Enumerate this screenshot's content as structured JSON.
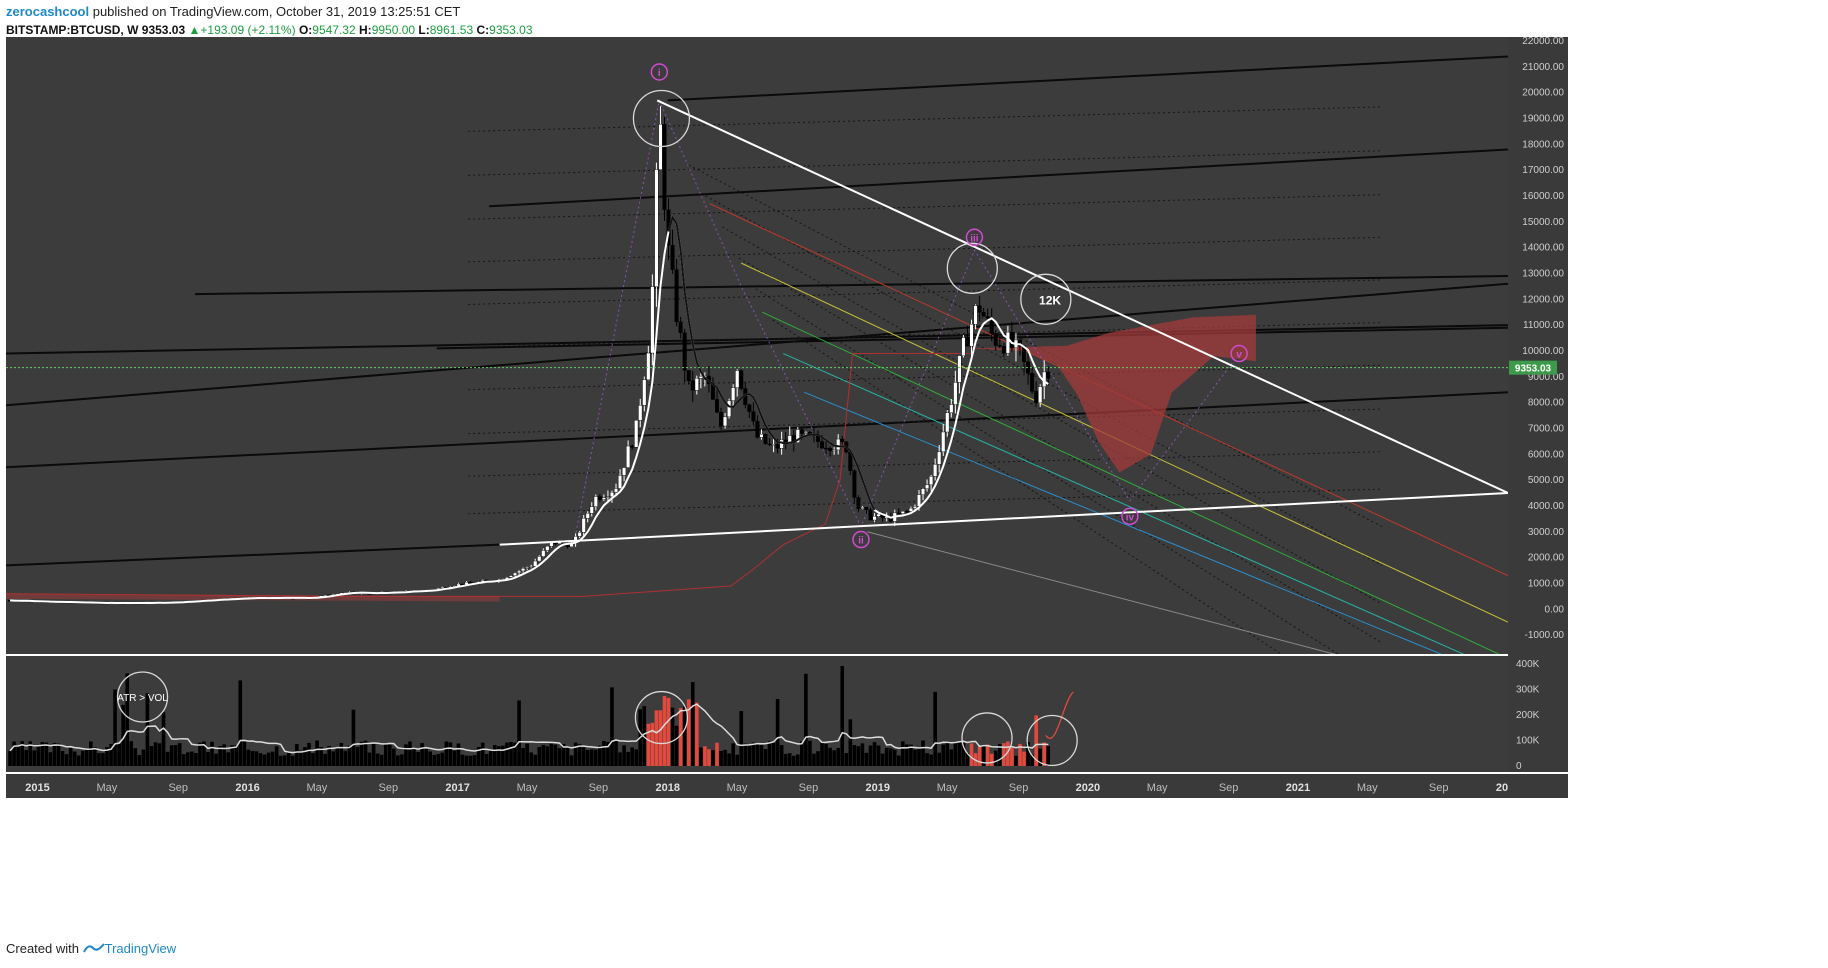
{
  "header": {
    "author": "zerocashcool",
    "published_text": "published on TradingView.com, October 31, 2019 13:25:51 CET",
    "symbol": "BITSTAMP:BTCUSD, W",
    "price": "9353.03",
    "change": "+193.09 (+2.11%)",
    "o_label": "O:",
    "o_value": "9547.32",
    "h_label": "H:",
    "h_value": "9950.00",
    "l_label": "L:",
    "l_value": "8961.53",
    "c_label": "C:",
    "c_value": "9353.03"
  },
  "footer": {
    "created_with": "Created with",
    "brand": "TradingView"
  },
  "colors": {
    "panel_bg": "#3c3c3c",
    "up_candle": "#ffffff",
    "down_candle": "#000000",
    "price_tag": "#3d9a4b",
    "volume_highlight": "#e04a3f",
    "cloud": "#a33a3a",
    "wave_label": "#d24bd2"
  },
  "chart_data": {
    "type": "candlestick",
    "ylim": [
      -1500,
      22000
    ],
    "y_ticks": [
      "22000.00",
      "21000.00",
      "20000.00",
      "19000.00",
      "18000.00",
      "17000.00",
      "16000.00",
      "15000.00",
      "14000.00",
      "13000.00",
      "12000.00",
      "11000.00",
      "10000.00",
      "9000.00",
      "8000.00",
      "7000.00",
      "6000.00",
      "5000.00",
      "4000.00",
      "3000.00",
      "2000.00",
      "1000.00",
      "0.00",
      "-1000.00"
    ],
    "y_values": [
      22000,
      21000,
      20000,
      19000,
      18000,
      17000,
      16000,
      15000,
      14000,
      13000,
      12000,
      11000,
      10000,
      9000,
      8000,
      7000,
      6000,
      5000,
      4000,
      3000,
      2000,
      1000,
      0,
      -1000
    ],
    "x_ticks": [
      {
        "label": "2015",
        "t": 2015.0,
        "year": true
      },
      {
        "label": "May",
        "t": 2015.33
      },
      {
        "label": "Sep",
        "t": 2015.67
      },
      {
        "label": "2016",
        "t": 2016.0,
        "year": true
      },
      {
        "label": "May",
        "t": 2016.33
      },
      {
        "label": "Sep",
        "t": 2016.67
      },
      {
        "label": "2017",
        "t": 2017.0,
        "year": true
      },
      {
        "label": "May",
        "t": 2017.33
      },
      {
        "label": "Sep",
        "t": 2017.67
      },
      {
        "label": "2018",
        "t": 2018.0,
        "year": true
      },
      {
        "label": "May",
        "t": 2018.33
      },
      {
        "label": "Sep",
        "t": 2018.67
      },
      {
        "label": "2019",
        "t": 2019.0,
        "year": true
      },
      {
        "label": "May",
        "t": 2019.33
      },
      {
        "label": "Sep",
        "t": 2019.67
      },
      {
        "label": "2020",
        "t": 2020.0,
        "year": true
      },
      {
        "label": "May",
        "t": 2020.33
      },
      {
        "label": "Sep",
        "t": 2020.67
      },
      {
        "label": "2021",
        "t": 2021.0,
        "year": true
      },
      {
        "label": "May",
        "t": 2021.33
      },
      {
        "label": "Sep",
        "t": 2021.67
      },
      {
        "label": "20",
        "t": 2022.0,
        "year": true
      }
    ],
    "xlim": [
      2014.85,
      2022.0
    ],
    "price_points": [
      [
        2014.85,
        350
      ],
      [
        2015.0,
        300
      ],
      [
        2015.3,
        240
      ],
      [
        2015.6,
        250
      ],
      [
        2015.85,
        380
      ],
      [
        2016.0,
        430
      ],
      [
        2016.3,
        440
      ],
      [
        2016.45,
        650
      ],
      [
        2016.6,
        620
      ],
      [
        2016.85,
        720
      ],
      [
        2017.0,
        960
      ],
      [
        2017.2,
        1150
      ],
      [
        2017.35,
        1700
      ],
      [
        2017.45,
        2600
      ],
      [
        2017.55,
        2500
      ],
      [
        2017.65,
        4300
      ],
      [
        2017.75,
        4700
      ],
      [
        2017.85,
        7000
      ],
      [
        2017.92,
        11000
      ],
      [
        2017.96,
        19200
      ],
      [
        2018.0,
        14000
      ],
      [
        2018.05,
        11000
      ],
      [
        2018.1,
        8500
      ],
      [
        2018.18,
        9000
      ],
      [
        2018.25,
        7000
      ],
      [
        2018.33,
        9400
      ],
      [
        2018.42,
        6700
      ],
      [
        2018.5,
        6200
      ],
      [
        2018.6,
        6700
      ],
      [
        2018.72,
        6500
      ],
      [
        2018.85,
        6300
      ],
      [
        2018.9,
        4000
      ],
      [
        2018.96,
        3600
      ],
      [
        2019.05,
        3500
      ],
      [
        2019.15,
        3800
      ],
      [
        2019.25,
        5000
      ],
      [
        2019.33,
        7500
      ],
      [
        2019.42,
        10500
      ],
      [
        2019.48,
        11800
      ],
      [
        2019.55,
        10500
      ],
      [
        2019.62,
        10300
      ],
      [
        2019.68,
        9800
      ],
      [
        2019.75,
        8200
      ],
      [
        2019.8,
        9353
      ]
    ],
    "volume_ylim": [
      0,
      400000
    ],
    "volume_ticks": [
      "400K",
      "300K",
      "200K",
      "100K",
      "0"
    ],
    "volume_values": [
      400000,
      300000,
      200000,
      100000,
      0
    ],
    "annotations": [
      {
        "label": "i",
        "t": 2017.96,
        "y": 20800
      },
      {
        "label": "ii",
        "t": 2018.92,
        "y": 2700
      },
      {
        "label": "iii",
        "t": 2019.46,
        "y": 14400
      },
      {
        "label": "iv",
        "t": 2020.2,
        "y": 3600
      },
      {
        "label": "v",
        "t": 2020.72,
        "y": 9900
      },
      {
        "label": "12K",
        "t": 2019.82,
        "y": 12000
      },
      {
        "label": "ATR > VOL",
        "t": 2015.5,
        "y": 0
      }
    ],
    "last_price": "9353.03"
  }
}
